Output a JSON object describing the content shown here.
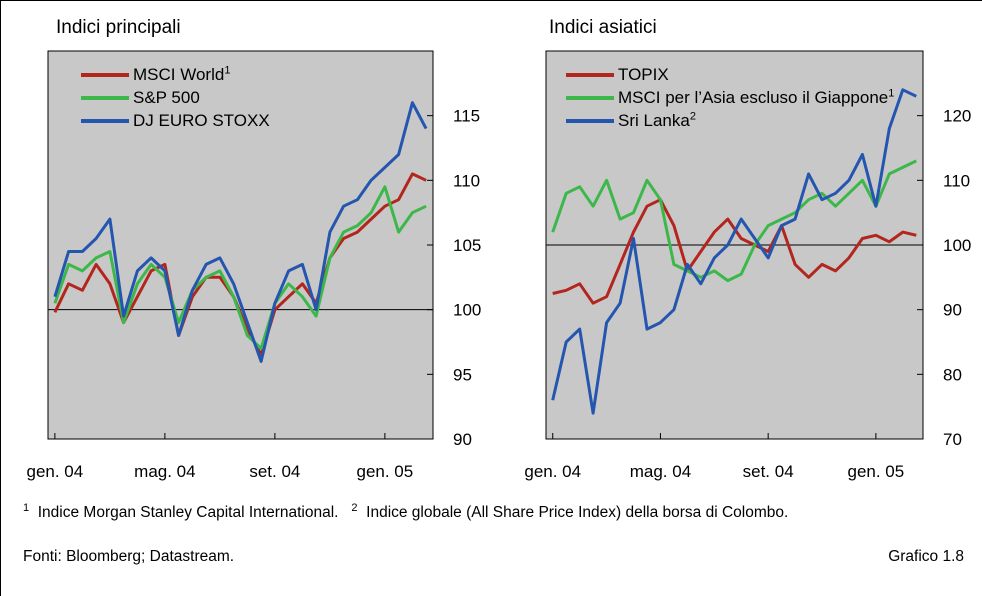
{
  "chart_data": [
    {
      "type": "line",
      "title": "Indici principali",
      "categories": [
        "gen. 04",
        null,
        null,
        null,
        null,
        null,
        null,
        null,
        "mag. 04",
        null,
        null,
        null,
        null,
        null,
        null,
        null,
        "set. 04",
        null,
        null,
        null,
        null,
        null,
        null,
        null,
        "gen. 05",
        null,
        null,
        null
      ],
      "series": [
        {
          "name": "MSCI World",
          "note": "1",
          "color": "#b3261e",
          "values": [
            99.8,
            102,
            101.5,
            103.5,
            102,
            99,
            101,
            103,
            103.5,
            98,
            101,
            102.5,
            102.5,
            101,
            98.5,
            96.5,
            100,
            101,
            102,
            100.5,
            104,
            105.5,
            106,
            107,
            108,
            108.5,
            110.5,
            110
          ]
        },
        {
          "name": "S&P 500",
          "color": "#3cb84a",
          "values": [
            100.5,
            103.5,
            103,
            104,
            104.5,
            99,
            102,
            103.5,
            102.5,
            99,
            101.5,
            102.5,
            103,
            101,
            98,
            97,
            100.5,
            102,
            101,
            99.5,
            104,
            106,
            106.5,
            107.5,
            109.5,
            106,
            107.5,
            108
          ]
        },
        {
          "name": "DJ EURO STOXX",
          "color": "#2456b0",
          "values": [
            101,
            104.5,
            104.5,
            105.5,
            107,
            99.5,
            103,
            104,
            103,
            98,
            101.5,
            103.5,
            104,
            102,
            99,
            96,
            100.5,
            103,
            103.5,
            100,
            106,
            108,
            108.5,
            110,
            111,
            112,
            116,
            114
          ]
        }
      ],
      "ylim": [
        90,
        120
      ],
      "yticks": [
        90,
        95,
        100,
        105,
        110,
        115
      ],
      "reference_line": 100
    },
    {
      "type": "line",
      "title": "Indici asiatici",
      "categories": [
        "gen. 04",
        null,
        null,
        null,
        null,
        null,
        null,
        null,
        "mag. 04",
        null,
        null,
        null,
        null,
        null,
        null,
        null,
        "set. 04",
        null,
        null,
        null,
        null,
        null,
        null,
        null,
        "gen. 05",
        null,
        null,
        null
      ],
      "series": [
        {
          "name": "TOPIX",
          "color": "#b3261e",
          "values": [
            92.5,
            93,
            94,
            91,
            92,
            97,
            102,
            106,
            107,
            103,
            96,
            99,
            102,
            104,
            101,
            100,
            99,
            103,
            97,
            95,
            97,
            96,
            98,
            101,
            101.5,
            100.5,
            102,
            101.5
          ]
        },
        {
          "name": "MSCI per l’Asia escluso il Giappone",
          "note": "1",
          "color": "#3cb84a",
          "values": [
            102,
            108,
            109,
            106,
            110,
            104,
            105,
            110,
            107,
            97,
            96,
            95,
            96,
            94.5,
            95.5,
            100,
            103,
            104,
            105,
            107,
            108,
            106,
            108,
            110,
            106,
            111,
            112,
            113
          ]
        },
        {
          "name": "Sri Lanka",
          "note": "2",
          "color": "#2456b0",
          "values": [
            76,
            85,
            87,
            74,
            88,
            91,
            101,
            87,
            88,
            90,
            97,
            94,
            98,
            100,
            104,
            101,
            98,
            103,
            104,
            111,
            107,
            108,
            110,
            114,
            106,
            118,
            124,
            123
          ]
        }
      ],
      "ylim": [
        70,
        130
      ],
      "yticks": [
        70,
        80,
        90,
        100,
        110,
        120
      ],
      "reference_line": 100
    }
  ],
  "footnotes": [
    {
      "mark": "1",
      "text": "Indice Morgan Stanley Capital International."
    },
    {
      "mark": "2",
      "text": "Indice globale (All Share Price Index) della borsa di Colombo."
    }
  ],
  "sources": "Fonti: Bloomberg; Datastream.",
  "figure_label": "Grafico 1.8"
}
